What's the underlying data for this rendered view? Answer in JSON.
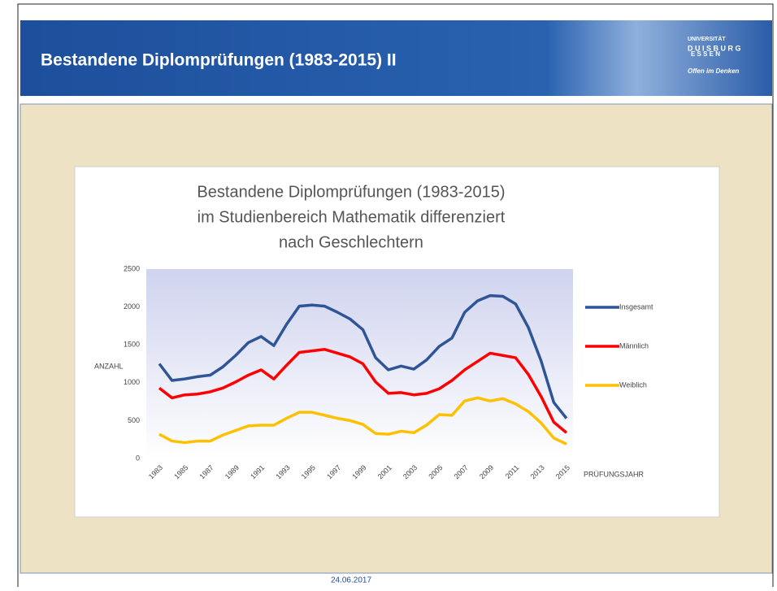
{
  "header": {
    "title": "Bestandene Diplomprüfungen (1983-2015) II",
    "logo": [
      "UNIVERSITÄT",
      "D U I S B U R G",
      "E S S E N",
      "Offen im Denken"
    ]
  },
  "footer": {
    "date": "24.06.2017"
  },
  "chart_data": {
    "type": "line",
    "title": [
      "Bestandene Diplomprüfungen (1983-2015)",
      "im Studienbereich Mathematik differenziert",
      "nach Geschlechtern"
    ],
    "y_label": "ANZAHL",
    "x_label": "PRÜFUNGSJAHR",
    "categories": [
      "1983",
      null,
      "1985",
      null,
      "1987",
      null,
      "1989",
      null,
      "1991",
      null,
      "1993",
      null,
      "1995",
      null,
      "1997",
      null,
      "1999",
      null,
      "2001",
      null,
      "2003",
      null,
      "2005",
      null,
      "2007",
      null,
      "2009",
      null,
      "2011",
      null,
      "2013",
      null,
      "2015"
    ],
    "series": [
      {
        "name": "Insgesamt",
        "color": "#2f5597",
        "values": [
          1250,
          1030,
          1050,
          1080,
          1100,
          1210,
          1360,
          1530,
          1610,
          1490,
          1770,
          2010,
          2025,
          2010,
          1930,
          1840,
          1700,
          1330,
          1170,
          1220,
          1180,
          1300,
          1480,
          1590,
          1930,
          2080,
          2150,
          2140,
          2040,
          1730,
          1290,
          740,
          530
        ]
      },
      {
        "name": "Männlich",
        "color": "#ff0000",
        "values": [
          930,
          800,
          840,
          850,
          880,
          930,
          1010,
          1100,
          1170,
          1050,
          1230,
          1400,
          1420,
          1440,
          1390,
          1340,
          1250,
          1010,
          860,
          870,
          840,
          860,
          920,
          1030,
          1170,
          1280,
          1390,
          1360,
          1330,
          1110,
          820,
          480,
          340
        ]
      },
      {
        "name": "Weiblich",
        "color": "#ffc000",
        "values": [
          320,
          230,
          210,
          230,
          230,
          310,
          370,
          430,
          440,
          440,
          530,
          610,
          610,
          570,
          530,
          500,
          450,
          330,
          320,
          360,
          340,
          440,
          580,
          570,
          760,
          800,
          760,
          790,
          720,
          620,
          470,
          270,
          190
        ]
      }
    ],
    "ylim": [
      0,
      2500
    ],
    "yticks": [
      0,
      500,
      1000,
      1500,
      2000,
      2500
    ],
    "legend": "right"
  }
}
